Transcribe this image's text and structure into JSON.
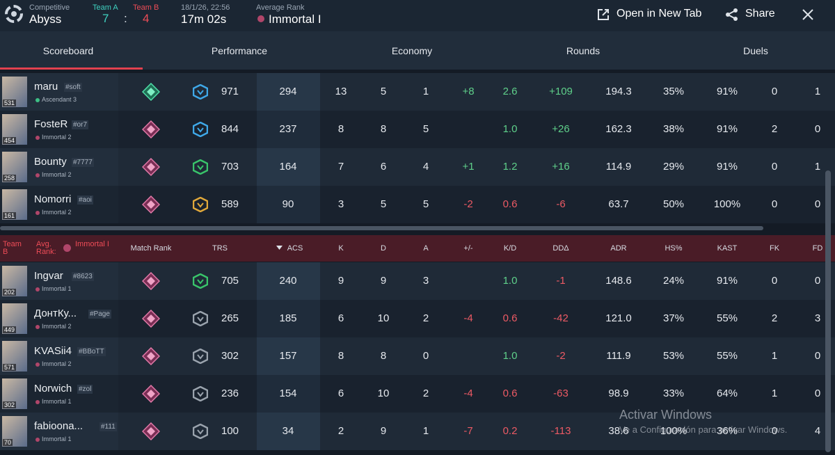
{
  "header": {
    "mode": "Competitive",
    "map": "Abyss",
    "team_a": {
      "label": "Team A",
      "score": "7"
    },
    "separator": ":",
    "team_b": {
      "label": "Team B",
      "score": "4"
    },
    "date": "18/1/26, 22:56",
    "duration": "17m 02s",
    "avg_rank_label": "Average Rank",
    "avg_rank": "Immortal I",
    "actions": [
      "Open in New Tab",
      "Share"
    ]
  },
  "tabs": [
    "Scoreboard",
    "Performance",
    "Economy",
    "Rounds",
    "Duels"
  ],
  "team_a_rows": [
    {
      "name": "maru",
      "tag": "#soft",
      "level": "531",
      "rank": "Ascendant 3",
      "trs_color": "#3fa8e8",
      "trs": "971",
      "acs": "294",
      "k": "13",
      "d": "5",
      "a": "1",
      "pm": "+8",
      "kd": "2.6",
      "dd": "+109",
      "adr": "194.3",
      "hs": "35%",
      "kast": "91%",
      "fk": "0",
      "fd": "1"
    },
    {
      "name": "FosteR",
      "tag": "#or7",
      "level": "454",
      "rank": "Immortal 2",
      "trs_color": "#3fa8e8",
      "trs": "844",
      "acs": "237",
      "k": "8",
      "d": "8",
      "a": "5",
      "pm": null,
      "kd": "1.0",
      "dd": "+26",
      "adr": "162.3",
      "hs": "38%",
      "kast": "91%",
      "fk": "2",
      "fd": "0"
    },
    {
      "name": "Bounty",
      "tag": "#7777",
      "level": "258",
      "rank": "Immortal 2",
      "trs_color": "#39c46a",
      "trs": "703",
      "acs": "164",
      "k": "7",
      "d": "6",
      "a": "4",
      "pm": "+1",
      "kd": "1.2",
      "dd": "+16",
      "adr": "114.9",
      "hs": "29%",
      "kast": "91%",
      "fk": "0",
      "fd": "1"
    },
    {
      "name": "Nomorri",
      "tag": "#aoi",
      "level": "161",
      "rank": "Immortal 2",
      "trs_color": "#e0a83a",
      "trs": "589",
      "acs": "90",
      "k": "3",
      "d": "5",
      "a": "5",
      "pm": "-2",
      "kd": "0.6",
      "dd": "-6",
      "adr": "63.7",
      "hs": "50%",
      "kast": "100%",
      "fk": "0",
      "fd": "0"
    }
  ],
  "team_b_header": {
    "team": "Team B",
    "avg_rank_label": "Avg. Rank:",
    "avg_rank": "Immortal I",
    "columns": [
      "Match Rank",
      "TRS",
      "ACS",
      "K",
      "D",
      "A",
      "+/-",
      "K/D",
      "DDΔ",
      "ADR",
      "HS%",
      "KAST",
      "FK",
      "FD"
    ]
  },
  "team_b_rows": [
    {
      "name": "Ingvar",
      "tag": "#8623",
      "level": "202",
      "rank": "Immortal 1",
      "trs_color": "#39c46a",
      "trs": "705",
      "acs": "240",
      "k": "9",
      "d": "9",
      "a": "3",
      "pm": null,
      "kd": "1.0",
      "dd": "-1",
      "adr": "148.6",
      "hs": "24%",
      "kast": "91%",
      "fk": "0",
      "fd": "0"
    },
    {
      "name": "ДонтКу...",
      "tag": "#Page",
      "level": "449",
      "rank": "Immortal 2",
      "trs_color": "#9aa3ad",
      "trs": "265",
      "acs": "185",
      "k": "6",
      "d": "10",
      "a": "2",
      "pm": "-4",
      "kd": "0.6",
      "dd": "-42",
      "adr": "121.0",
      "hs": "37%",
      "kast": "55%",
      "fk": "2",
      "fd": "3"
    },
    {
      "name": "KVASii4",
      "tag": "#BBoTT",
      "level": "571",
      "rank": "Immortal 2",
      "trs_color": "#9aa3ad",
      "trs": "302",
      "acs": "157",
      "k": "8",
      "d": "8",
      "a": "0",
      "pm": null,
      "kd": "1.0",
      "dd": "-2",
      "adr": "111.9",
      "hs": "53%",
      "kast": "55%",
      "fk": "1",
      "fd": "0"
    },
    {
      "name": "Norwich",
      "tag": "#zol",
      "level": "302",
      "rank": "Immortal 1",
      "trs_color": "#9aa3ad",
      "trs": "236",
      "acs": "154",
      "k": "6",
      "d": "10",
      "a": "2",
      "pm": "-4",
      "kd": "0.6",
      "dd": "-63",
      "adr": "98.9",
      "hs": "33%",
      "kast": "64%",
      "fk": "1",
      "fd": "0"
    },
    {
      "name": "fabioona...",
      "tag": "#111",
      "level": "70",
      "rank": "Immortal 1",
      "trs_color": "#9aa3ad",
      "trs": "100",
      "acs": "34",
      "k": "2",
      "d": "9",
      "a": "1",
      "pm": "-7",
      "kd": "0.2",
      "dd": "-113",
      "adr": "38.6",
      "hs": "100%",
      "kast": "36%",
      "fk": "0",
      "fd": "4"
    }
  ],
  "watermark": {
    "title": "Activar Windows",
    "text": "Ve a Configuración para activar Windows."
  }
}
